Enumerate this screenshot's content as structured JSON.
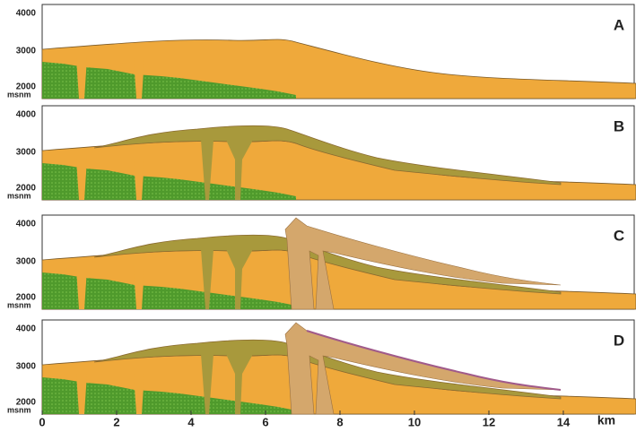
{
  "panels": [
    {
      "label": "A"
    },
    {
      "label": "B"
    },
    {
      "label": "C"
    },
    {
      "label": "D"
    }
  ],
  "y_axis": {
    "ticks": [
      "4000",
      "3000",
      "2000"
    ],
    "unit": "msnm"
  },
  "x_axis": {
    "ticks": [
      "0",
      "2",
      "4",
      "6",
      "8",
      "10",
      "12",
      "14"
    ],
    "unit": "km"
  }
}
